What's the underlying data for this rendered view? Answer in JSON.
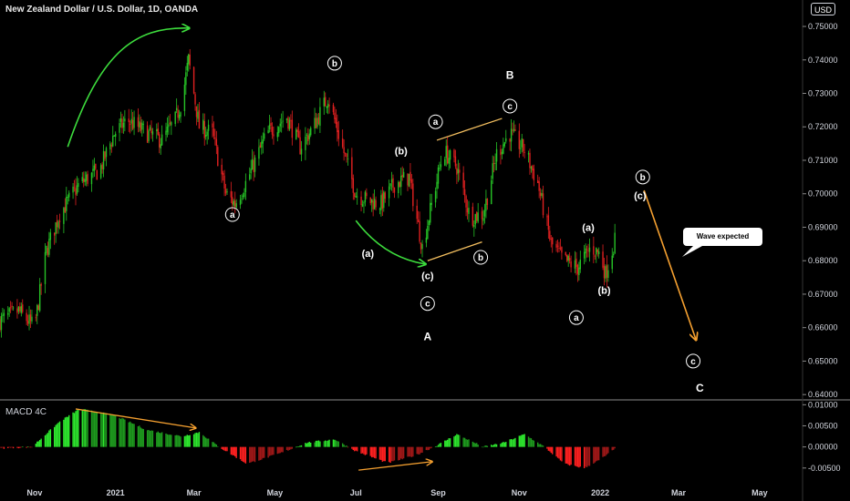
{
  "header": {
    "title": "New Zealand Dollar / U.S. Dollar, 1D, OANDA",
    "currency": "USD"
  },
  "macd": {
    "title": "MACD 4C"
  },
  "callout": {
    "text": "Wave expected"
  },
  "colors": {
    "up": "#26c226",
    "down": "#e02020",
    "orange": "#f5a030",
    "green_arrow": "#3ddc3d"
  },
  "chart_data": {
    "type": "candlestick",
    "price_axis": {
      "ticks": [
        "0.75000",
        "0.74000",
        "0.73000",
        "0.72000",
        "0.71000",
        "0.70000",
        "0.69000",
        "0.68000",
        "0.67000",
        "0.66000",
        "0.65000",
        "0.64000"
      ],
      "values": [
        0.75,
        0.74,
        0.73,
        0.72,
        0.71,
        0.7,
        0.69,
        0.68,
        0.67,
        0.66,
        0.65,
        0.64
      ],
      "ylim": [
        0.6395,
        0.753
      ]
    },
    "macd_axis": {
      "ticks": [
        "0.01000",
        "0.00500",
        "0.00000",
        "-0.00500"
      ],
      "values": [
        0.01,
        0.005,
        0.0,
        -0.005
      ],
      "ylim": [
        -0.0085,
        0.0105
      ]
    },
    "time_axis": {
      "labels": [
        "Nov",
        "2021",
        "Mar",
        "May",
        "Jul",
        "Sep",
        "Nov",
        "2022",
        "Mar",
        "May"
      ],
      "dates": [
        "2020-11-01",
        "2021-01-01",
        "2021-03-01",
        "2021-05-01",
        "2021-07-01",
        "2021-09-01",
        "2021-11-01",
        "2022-01-01",
        "2022-03-01",
        "2022-05-01"
      ],
      "xlim": [
        "2020-10-06",
        "2022-06-01"
      ]
    },
    "price_path": [
      [
        "2020-10-06",
        0.662
      ],
      [
        "2020-10-20",
        0.665
      ],
      [
        "2020-11-01",
        0.66
      ],
      [
        "2020-11-10",
        0.683
      ],
      [
        "2020-11-20",
        0.694
      ],
      [
        "2020-12-05",
        0.703
      ],
      [
        "2020-12-20",
        0.707
      ],
      [
        "2020-12-31",
        0.718
      ],
      [
        "2021-01-10",
        0.722
      ],
      [
        "2021-01-25",
        0.718
      ],
      [
        "2021-02-05",
        0.716
      ],
      [
        "2021-02-15",
        0.722
      ],
      [
        "2021-02-20",
        0.728
      ],
      [
        "2021-02-25",
        0.74
      ],
      [
        "2021-03-05",
        0.72
      ],
      [
        "2021-03-15",
        0.718
      ],
      [
        "2021-03-25",
        0.7
      ],
      [
        "2021-04-01",
        0.697
      ],
      [
        "2021-04-10",
        0.704
      ],
      [
        "2021-04-25",
        0.718
      ],
      [
        "2021-05-10",
        0.723
      ],
      [
        "2021-05-20",
        0.714
      ],
      [
        "2021-05-30",
        0.72
      ],
      [
        "2021-06-10",
        0.729
      ],
      [
        "2021-06-20",
        0.715
      ],
      [
        "2021-07-01",
        0.7
      ],
      [
        "2021-07-10",
        0.698
      ],
      [
        "2021-07-20",
        0.697
      ],
      [
        "2021-07-30",
        0.703
      ],
      [
        "2021-08-10",
        0.705
      ],
      [
        "2021-08-20",
        0.684
      ],
      [
        "2021-08-31",
        0.704
      ],
      [
        "2021-09-05",
        0.713
      ],
      [
        "2021-09-15",
        0.708
      ],
      [
        "2021-09-25",
        0.693
      ],
      [
        "2021-10-05",
        0.694
      ],
      [
        "2021-10-15",
        0.712
      ],
      [
        "2021-10-25",
        0.718
      ],
      [
        "2021-11-05",
        0.713
      ],
      [
        "2021-11-15",
        0.703
      ],
      [
        "2021-11-25",
        0.685
      ],
      [
        "2021-12-05",
        0.68
      ],
      [
        "2021-12-15",
        0.678
      ],
      [
        "2021-12-25",
        0.684
      ],
      [
        "2022-01-01",
        0.682
      ],
      [
        "2022-01-05",
        0.676
      ],
      [
        "2022-01-12",
        0.686
      ]
    ],
    "macd_path": [
      [
        "2020-10-06",
        -0.0003
      ],
      [
        "2020-10-30",
        0.0
      ],
      [
        "2020-11-20",
        0.006
      ],
      [
        "2020-12-05",
        0.009
      ],
      [
        "2020-12-31",
        0.0075
      ],
      [
        "2021-01-25",
        0.004
      ],
      [
        "2021-02-20",
        0.0025
      ],
      [
        "2021-03-05",
        0.0035
      ],
      [
        "2021-03-20",
        0.0
      ],
      [
        "2021-04-10",
        -0.004
      ],
      [
        "2021-05-05",
        -0.0015
      ],
      [
        "2021-05-25",
        0.001
      ],
      [
        "2021-06-15",
        0.0018
      ],
      [
        "2021-07-01",
        -0.001
      ],
      [
        "2021-07-25",
        -0.0038
      ],
      [
        "2021-08-15",
        -0.002
      ],
      [
        "2021-09-01",
        0.0005
      ],
      [
        "2021-09-15",
        0.003
      ],
      [
        "2021-10-05",
        0.0
      ],
      [
        "2021-10-20",
        0.001
      ],
      [
        "2021-11-05",
        0.003
      ],
      [
        "2021-11-20",
        0.0
      ],
      [
        "2021-12-05",
        -0.004
      ],
      [
        "2021-12-20",
        -0.005
      ],
      [
        "2022-01-01",
        -0.003
      ],
      [
        "2022-01-12",
        -0.0005
      ]
    ],
    "annotations": {
      "labels": [
        {
          "text": "a",
          "date": "2021-03-30",
          "price": 0.6938,
          "circled": true
        },
        {
          "text": "b",
          "date": "2021-06-15",
          "price": 0.739,
          "circled": true
        },
        {
          "text": "(b)",
          "date": "2021-08-04",
          "price": 0.7128,
          "circled": false
        },
        {
          "text": "(a)",
          "date": "2021-07-10",
          "price": 0.6822,
          "circled": false
        },
        {
          "text": "(c)",
          "date": "2021-08-24",
          "price": 0.6755,
          "circled": false
        },
        {
          "text": "c",
          "date": "2021-08-24",
          "price": 0.6672,
          "circled": true
        },
        {
          "text": "A",
          "date": "2021-08-24",
          "price": 0.6573,
          "circled": false,
          "big": true
        },
        {
          "text": "a",
          "date": "2021-08-30",
          "price": 0.7215,
          "circled": true
        },
        {
          "text": "b",
          "date": "2021-10-03",
          "price": 0.681,
          "circled": true
        },
        {
          "text": "c",
          "date": "2021-10-25",
          "price": 0.7262,
          "circled": true
        },
        {
          "text": "B",
          "date": "2021-10-25",
          "price": 0.7355,
          "circled": false,
          "big": true
        },
        {
          "text": "(a)",
          "date": "2021-12-23",
          "price": 0.69,
          "circled": false
        },
        {
          "text": "(b)",
          "date": "2022-01-04",
          "price": 0.6712,
          "circled": false
        },
        {
          "text": "a",
          "date": "2021-12-14",
          "price": 0.663,
          "circled": true
        },
        {
          "text": "b",
          "date": "2022-02-02",
          "price": 0.705,
          "circled": true
        },
        {
          "text": "(c)",
          "date": "2022-01-31",
          "price": 0.6995,
          "circled": false
        },
        {
          "text": "c",
          "date": "2022-03-12",
          "price": 0.65,
          "circled": true
        },
        {
          "text": "C",
          "date": "2022-03-17",
          "price": 0.642,
          "circled": false,
          "big": true
        }
      ],
      "trend_lines": [
        {
          "from": [
            "2021-08-31",
            0.716
          ],
          "to": [
            "2021-10-19",
            0.7225
          ],
          "color": "#f5c060"
        },
        {
          "from": [
            "2021-08-24",
            0.68
          ],
          "to": [
            "2021-10-04",
            0.6856
          ],
          "color": "#f5c060"
        }
      ],
      "forecast_arrow": {
        "from": [
          "2022-02-03",
          0.701
        ],
        "to": [
          "2022-03-14",
          0.6565
        ],
        "color": "#f5a030"
      },
      "macd_divergence_arrows": [
        {
          "from": [
            "2020-12-02",
            0.009
          ],
          "to": [
            "2021-03-02",
            0.0045
          ],
          "color": "#f5a030"
        },
        {
          "from": [
            "2021-07-03",
            -0.0055
          ],
          "to": [
            "2021-08-27",
            -0.0035
          ],
          "color": "#f5a030"
        }
      ],
      "green_arrows": [
        {
          "points": [
            [
              "2020-11-26",
              0.714
            ],
            [
              "2020-12-20",
              0.742
            ],
            [
              "2021-01-15",
              0.75
            ],
            [
              "2021-02-25",
              0.7495
            ]
          ]
        },
        {
          "points": [
            [
              "2021-07-01",
              0.692
            ],
            [
              "2021-07-22",
              0.681
            ],
            [
              "2021-08-22",
              0.679
            ]
          ]
        }
      ]
    }
  }
}
